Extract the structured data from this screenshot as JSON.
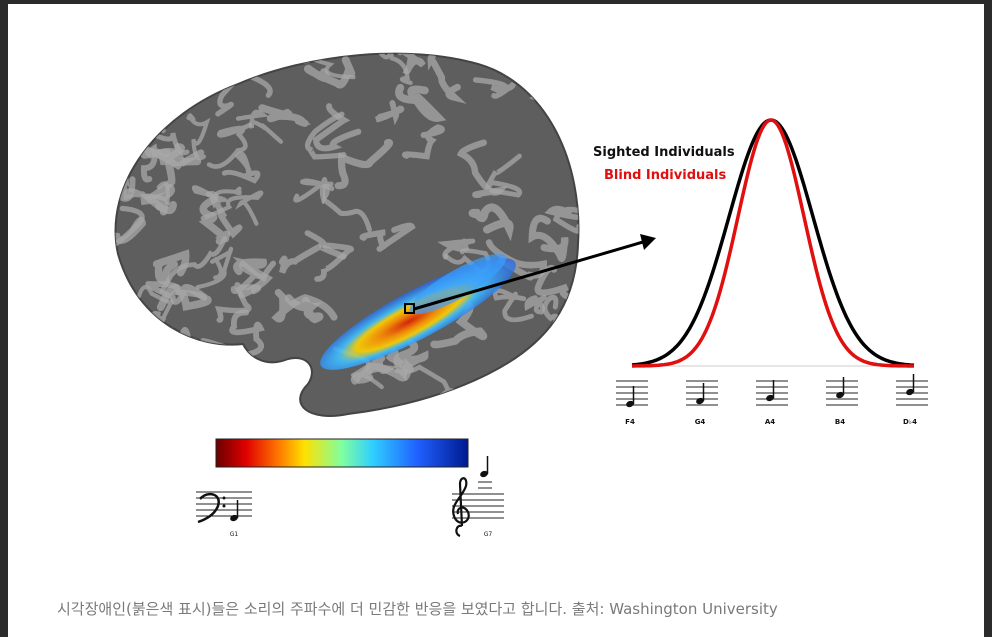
{
  "figure": {
    "legend": {
      "sighted": "Sighted Individuals",
      "blind": "Blind Individuals"
    },
    "notes": [
      "F4",
      "G4",
      "A4",
      "B4",
      "D♭4"
    ],
    "scale_ends": [
      "G1",
      "G7"
    ]
  },
  "caption": "시각장애인(붉은색 표시)들은 소리의 주파수에 더 민감한 반응을 보였다고 합니다. 출처: Washington University"
}
